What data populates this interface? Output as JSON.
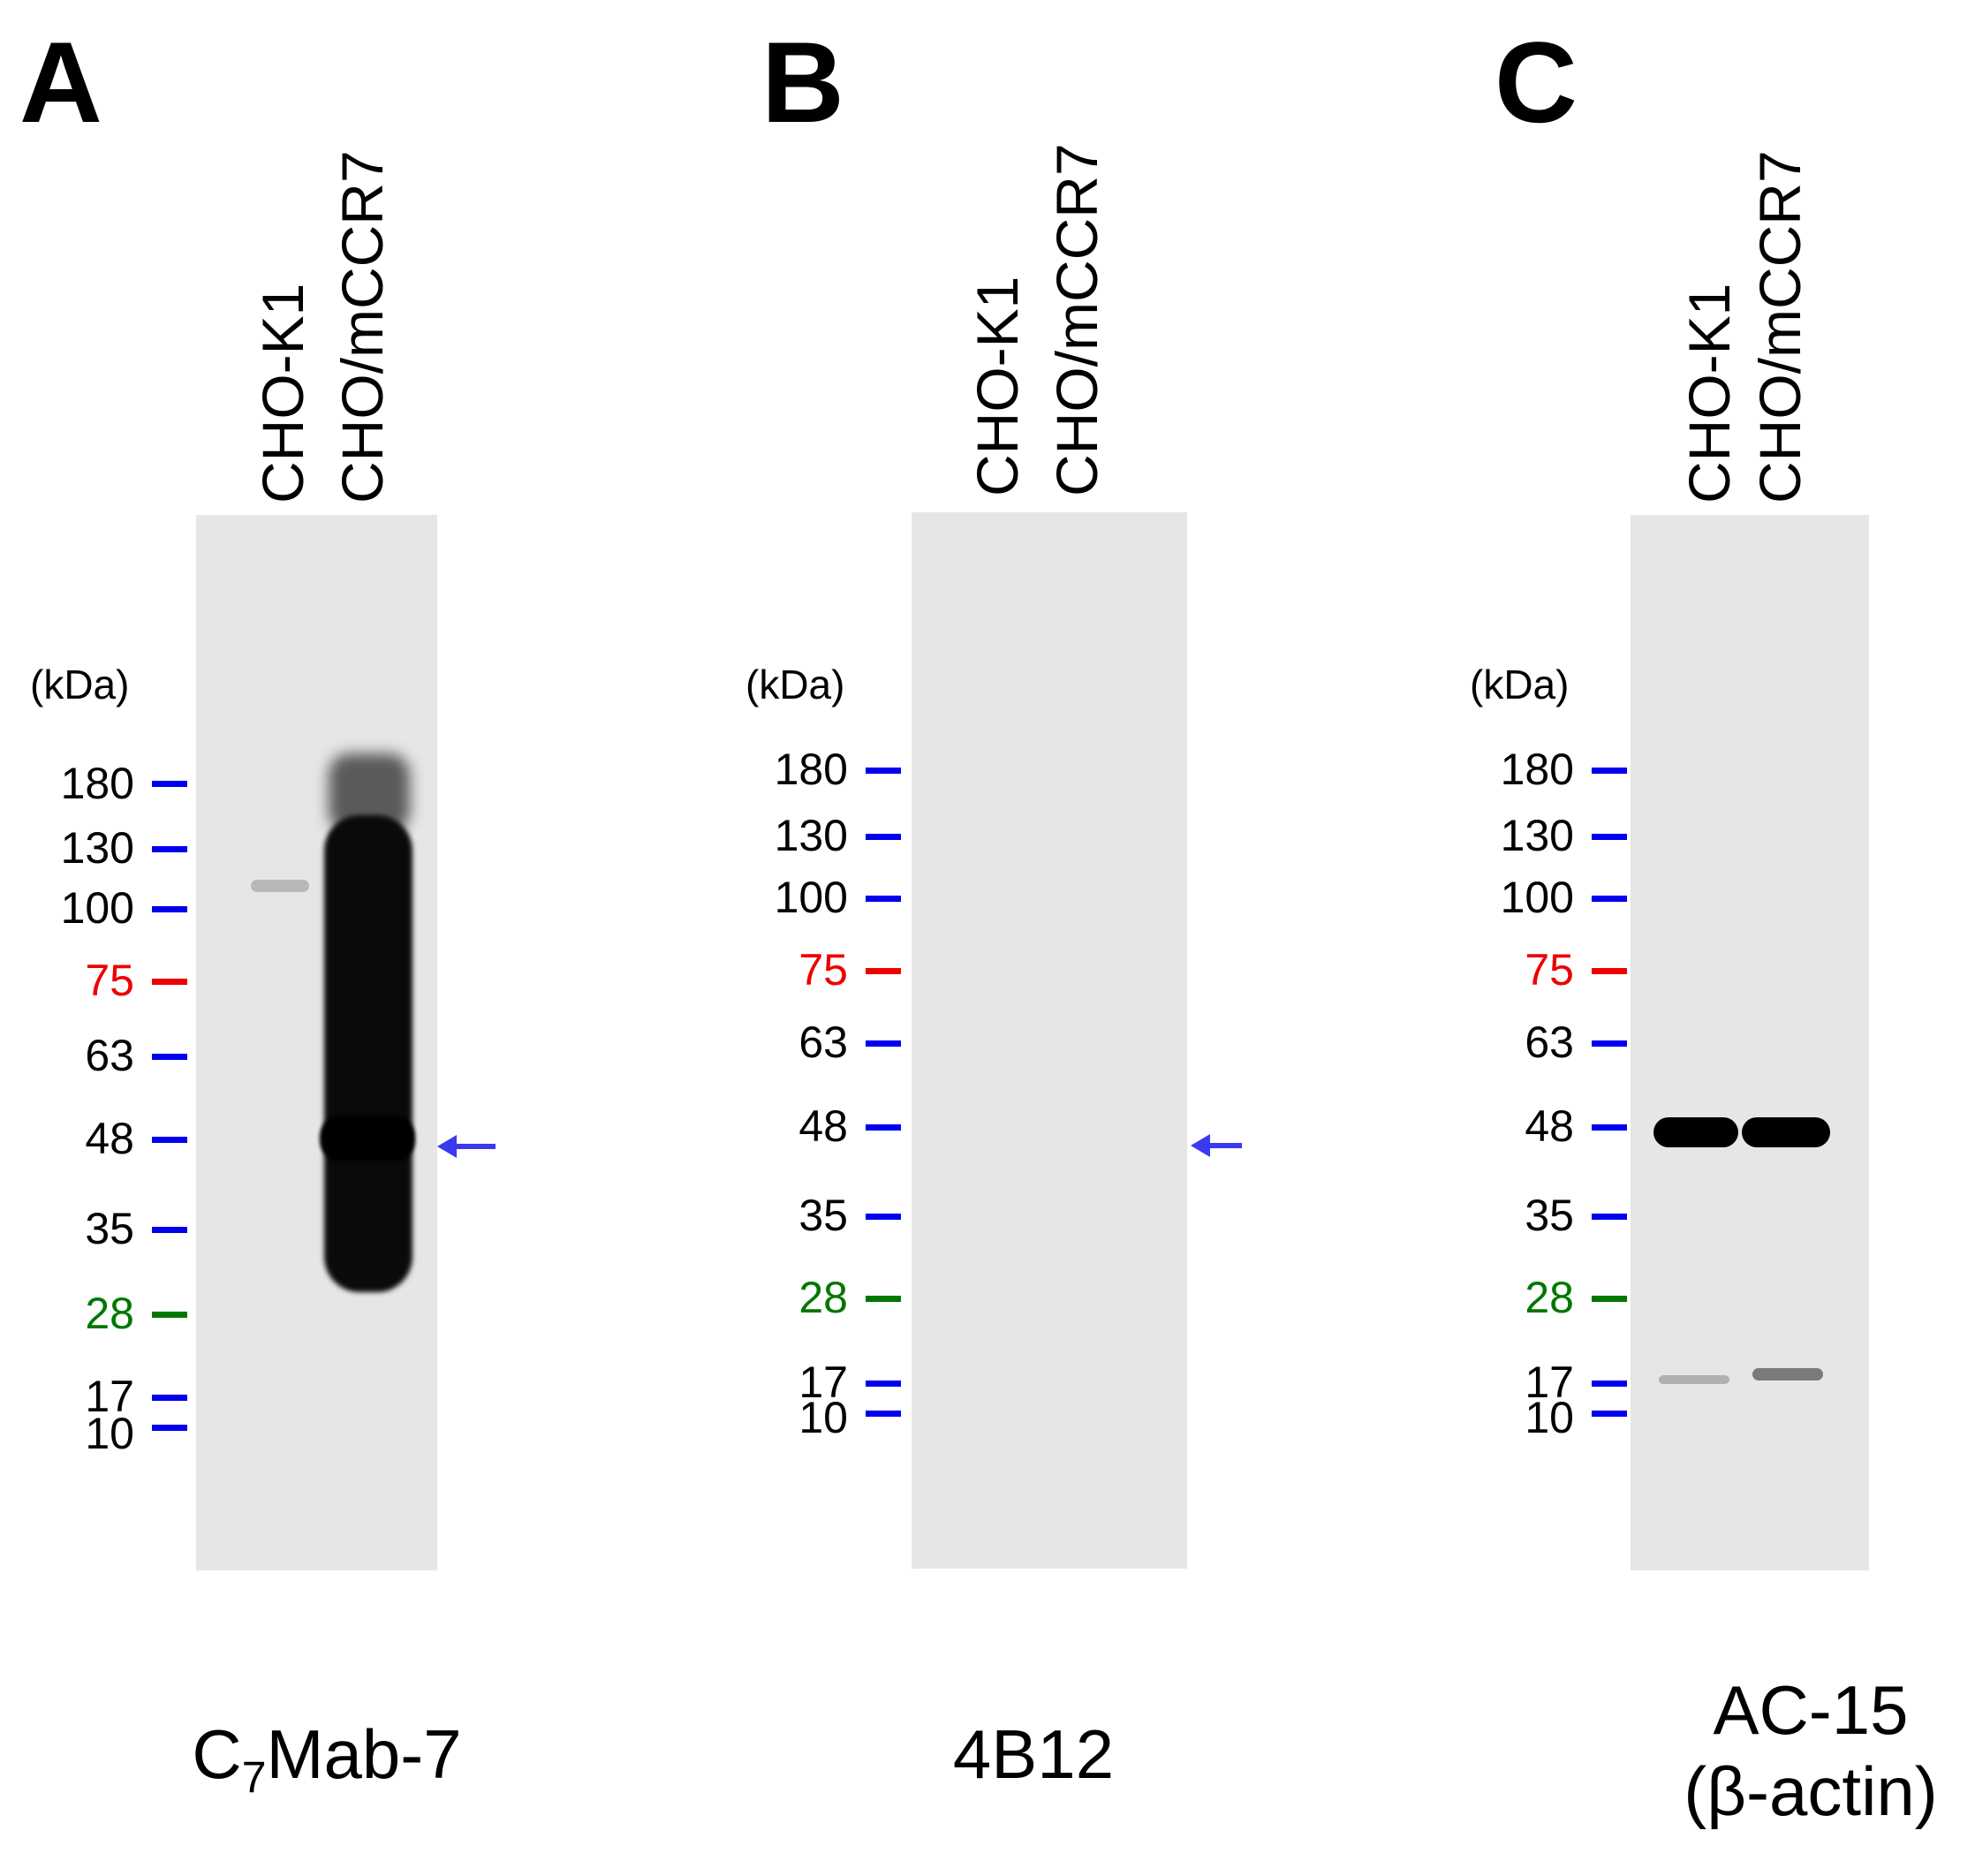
{
  "panels": [
    {
      "letter": "A",
      "lanes": [
        "CHO-K1",
        "CHO/mCCR7"
      ],
      "unit": "(kDa)",
      "markers": [
        {
          "label": "180",
          "color": "#0000ee"
        },
        {
          "label": "130",
          "color": "#0000ee"
        },
        {
          "label": "100",
          "color": "#0000ee"
        },
        {
          "label": "75",
          "color": "#ee0000"
        },
        {
          "label": "63",
          "color": "#0000ee"
        },
        {
          "label": "48",
          "color": "#0000ee"
        },
        {
          "label": "35",
          "color": "#0000ee"
        },
        {
          "label": "28",
          "color": "#007700"
        },
        {
          "label": "17",
          "color": "#0000ee"
        },
        {
          "label": "10",
          "color": "#0000ee"
        }
      ],
      "antibody": {
        "main": "C",
        "subscript": "7",
        "rest": "Mab-7"
      }
    },
    {
      "letter": "B",
      "lanes": [
        "CHO-K1",
        "CHO/mCCR7"
      ],
      "unit": "(kDa)",
      "markers": [
        {
          "label": "180",
          "color": "#0000ee"
        },
        {
          "label": "130",
          "color": "#0000ee"
        },
        {
          "label": "100",
          "color": "#0000ee"
        },
        {
          "label": "75",
          "color": "#ee0000"
        },
        {
          "label": "63",
          "color": "#0000ee"
        },
        {
          "label": "48",
          "color": "#0000ee"
        },
        {
          "label": "35",
          "color": "#0000ee"
        },
        {
          "label": "28",
          "color": "#007700"
        },
        {
          "label": "17",
          "color": "#0000ee"
        },
        {
          "label": "10",
          "color": "#0000ee"
        }
      ],
      "antibody": {
        "line1": "4B12"
      }
    },
    {
      "letter": "C",
      "lanes": [
        "CHO-K1",
        "CHO/mCCR7"
      ],
      "unit": "(kDa)",
      "markers": [
        {
          "label": "180",
          "color": "#0000ee"
        },
        {
          "label": "130",
          "color": "#0000ee"
        },
        {
          "label": "100",
          "color": "#0000ee"
        },
        {
          "label": "75",
          "color": "#ee0000"
        },
        {
          "label": "63",
          "color": "#0000ee"
        },
        {
          "label": "48",
          "color": "#0000ee"
        },
        {
          "label": "35",
          "color": "#0000ee"
        },
        {
          "label": "28",
          "color": "#007700"
        },
        {
          "label": "17",
          "color": "#0000ee"
        },
        {
          "label": "10",
          "color": "#0000ee"
        }
      ],
      "antibody": {
        "line1": "AC-15",
        "line2": "(β-actin)"
      }
    }
  ],
  "colors": {
    "blot_background": "#e6e6e6",
    "band": "#000000",
    "arrow": "#3a3aee"
  }
}
